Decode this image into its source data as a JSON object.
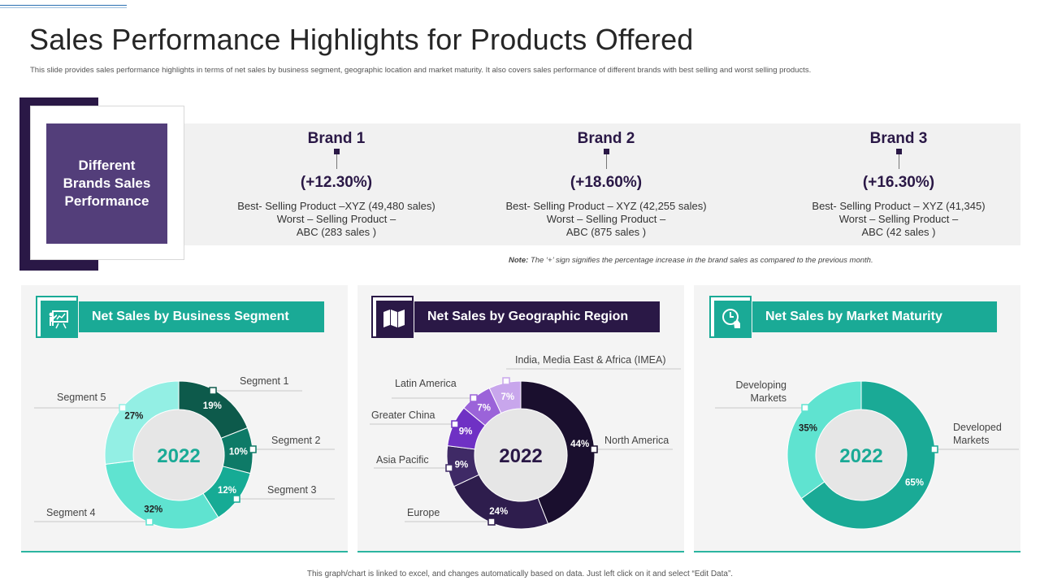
{
  "header": {
    "title": "Sales Performance Highlights for Products Offered",
    "subtitle": "This slide provides sales performance highlights in terms of net sales by business segment, geographic location and market maturity. It also covers sales performance of different brands with best selling and worst selling products."
  },
  "brands": {
    "box_label": "Different Brands Sales Performance",
    "items": [
      {
        "name": "Brand 1",
        "change": "(+12.30%)",
        "best": "Best- Selling Product –XYZ   (49,480 sales)",
        "worst": "Worst – Selling Product –",
        "worst_detail": "ABC (283 sales )"
      },
      {
        "name": "Brand 2",
        "change": "(+18.60%)",
        "best": "Best- Selling Product – XYZ   (42,255 sales)",
        "worst": "Worst – Selling Product –",
        "worst_detail": "ABC (875 sales )"
      },
      {
        "name": "Brand 3",
        "change": "(+16.30%)",
        "best": "Best- Selling Product – XYZ   (41,345)",
        "worst": "Worst – Selling Product –",
        "worst_detail": "ABC (42 sales )"
      }
    ],
    "note_label": "Note:",
    "note_text": " The ‘+’ sign signifies the percentage increase in the brand sales as compared to the previous month."
  },
  "panels": [
    {
      "title": "Net Sales by Business Segment",
      "icon": "presentation-icon"
    },
    {
      "title": "Net Sales by Geographic Region",
      "icon": "map-icon"
    },
    {
      "title": "Net Sales by Market Maturity",
      "icon": "clock-hand-icon"
    }
  ],
  "colors": {
    "teal": "#1aaa96",
    "dark_purple": "#2a1846",
    "box_purple": "#533e7a",
    "segment": [
      "#0d5a4b",
      "#0e7a67",
      "#16ab95",
      "#5fe3d0",
      "#93efe4"
    ],
    "region": [
      "#1a0f2e",
      "#2e1d4d",
      "#3f2a66",
      "#6f31c4",
      "#9b63d9",
      "#c8a6ec"
    ],
    "maturity": [
      "#1aaa96",
      "#5fe3d0"
    ]
  },
  "chart_data": [
    {
      "type": "pie",
      "title": "Net Sales by Business Segment",
      "center_label": "2022",
      "categories": [
        "Segment 1",
        "Segment 2",
        "Segment 3",
        "Segment 4",
        "Segment 5"
      ],
      "values": [
        19,
        10,
        12,
        32,
        27
      ],
      "value_labels": [
        "19%",
        "10%",
        "12%",
        "32%",
        "27%"
      ]
    },
    {
      "type": "pie",
      "title": "Net Sales by Geographic Region",
      "center_label": "2022",
      "categories": [
        "North America",
        "Europe",
        "Asia Pacific",
        "Greater China",
        "Latin America",
        "India, Media East & Africa (IMEA)"
      ],
      "values": [
        44,
        24,
        9,
        9,
        7,
        7
      ],
      "value_labels": [
        "44%",
        "24%",
        "9%",
        "9%",
        "7%",
        "7%"
      ]
    },
    {
      "type": "pie",
      "title": "Net Sales by Market Maturity",
      "center_label": "2022",
      "categories": [
        "Developed Markets",
        "Developing Markets"
      ],
      "values": [
        65,
        35
      ],
      "value_labels": [
        "65%",
        "35%"
      ]
    }
  ],
  "footer": "This graph/chart is linked to excel, and changes automatically based on data. Just left click on it and select “Edit Data”."
}
